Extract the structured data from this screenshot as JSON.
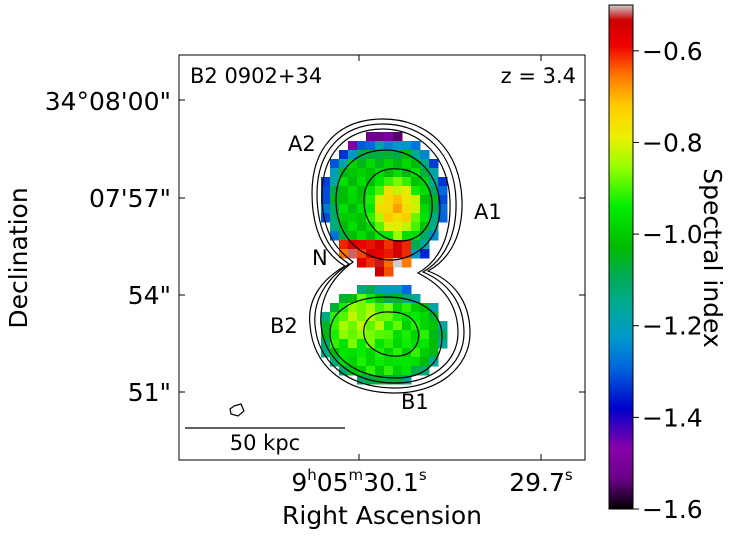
{
  "chart_data": {
    "type": "heatmap",
    "title": "B2 0902+34",
    "redshift_label": "z = 3.4",
    "xlabel": "Right Ascension",
    "ylabel": "Declination",
    "x_ticks": [
      {
        "h": "9",
        "m": "05",
        "s": "30.1"
      },
      {
        "s": "29.7"
      }
    ],
    "y_ticks": [
      "34°08'00\"",
      "07'57\"",
      "54\"",
      "51\""
    ],
    "colorbar": {
      "label": "Spectral index",
      "range": [
        -1.6,
        -0.5
      ],
      "ticks": [
        "−0.6",
        "−0.8",
        "−1.0",
        "−1.2",
        "−1.4",
        "−1.6"
      ],
      "tick_values": [
        -0.6,
        -0.8,
        -1.0,
        -1.2,
        -1.4,
        -1.6
      ],
      "colormap": "nipy_spectral"
    },
    "components": [
      {
        "label": "A2"
      },
      {
        "label": "A1"
      },
      {
        "label": "N"
      },
      {
        "label": "B2"
      },
      {
        "label": "B1"
      }
    ],
    "scale_bar": {
      "label": "50 kpc"
    },
    "grid": false
  }
}
